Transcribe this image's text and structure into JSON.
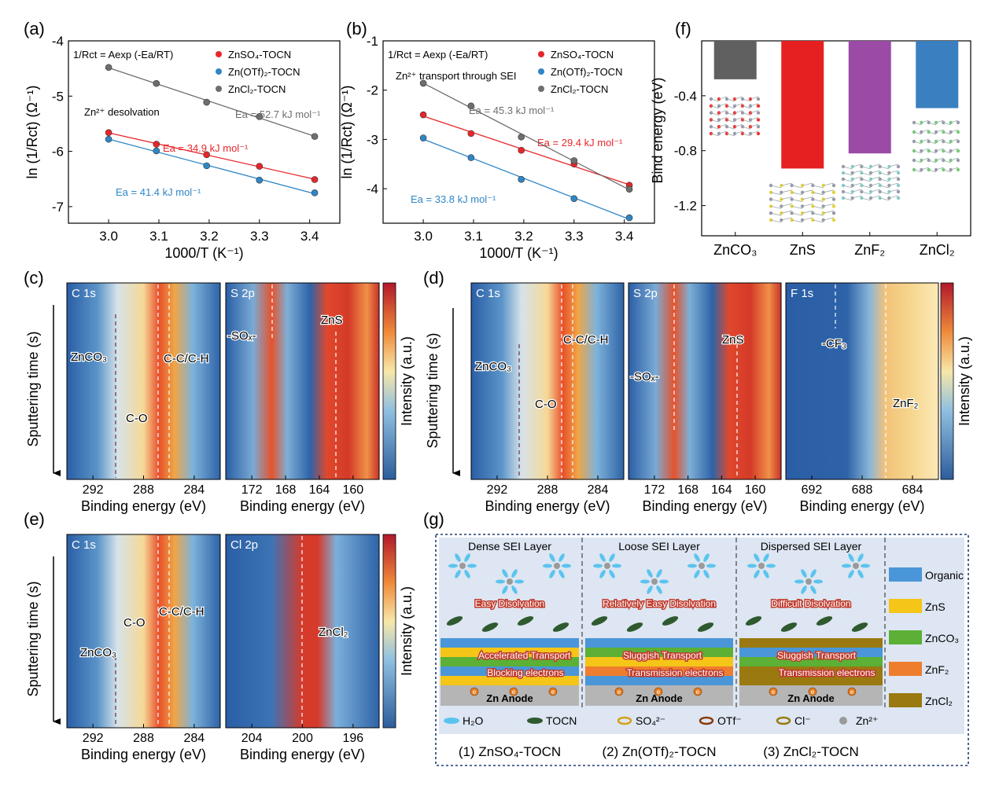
{
  "panels": {
    "a": {
      "letter": "(a)"
    },
    "b": {
      "letter": "(b)"
    },
    "c": {
      "letter": "(c)"
    },
    "d": {
      "letter": "(d)"
    },
    "e": {
      "letter": "(e)"
    },
    "f": {
      "letter": "(f)"
    },
    "g": {
      "letter": "(g)"
    }
  },
  "chart_data": [
    {
      "id": "a",
      "type": "line",
      "xlabel": "1000/T (K⁻¹)",
      "ylabel": "ln (1/Rct) (Ω⁻¹)",
      "xlim": [
        2.92,
        3.46
      ],
      "ylim": [
        -7.3,
        -4.0
      ],
      "xticks": [
        "3.0",
        "3.1",
        "3.2",
        "3.3",
        "3.4"
      ],
      "yticks": [
        "-4",
        "-5",
        "-6",
        "-7"
      ],
      "equation": "1/Rct = Aexp (-Ea/RT)",
      "annotation": "Zn²⁺ desolvation",
      "legend_placement": "top-right",
      "series": [
        {
          "name": "ZnSO₄-TOCN",
          "color": "#e8262a",
          "x": [
            3.0,
            3.095,
            3.195,
            3.3,
            3.41
          ],
          "y": [
            -5.66,
            -5.87,
            -6.06,
            -6.27,
            -6.51
          ],
          "ea_label": "Ea = 34.9 kJ mol⁻¹"
        },
        {
          "name": "Zn(OTf)₂-TOCN",
          "color": "#2f86c6",
          "x": [
            3.0,
            3.095,
            3.195,
            3.3,
            3.41
          ],
          "y": [
            -5.78,
            -5.99,
            -6.26,
            -6.52,
            -6.75
          ],
          "ea_label": "Ea = 41.4 kJ mol⁻¹"
        },
        {
          "name": "ZnCl₂-TOCN",
          "color": "#6e6e6e",
          "x": [
            3.0,
            3.095,
            3.195,
            3.3,
            3.41
          ],
          "y": [
            -4.48,
            -4.77,
            -5.11,
            -5.37,
            -5.73
          ],
          "ea_label": "Ea = 52.7 kJ mol⁻¹"
        }
      ]
    },
    {
      "id": "b",
      "type": "line",
      "xlabel": "1000/T (K⁻¹)",
      "ylabel": "ln (1/Rct) (Ω⁻¹)",
      "xlim": [
        2.92,
        3.46
      ],
      "ylim": [
        -4.7,
        -1.0
      ],
      "xticks": [
        "3.0",
        "3.1",
        "3.2",
        "3.3",
        "3.4"
      ],
      "yticks": [
        "-1",
        "-2",
        "-3",
        "-4"
      ],
      "equation": "1/Rct = Aexp (-Ea/RT)",
      "annotation": "Zn²⁺ transport through SEI",
      "legend_placement": "top-right",
      "series": [
        {
          "name": "ZnSO₄-TOCN",
          "color": "#e8262a",
          "x": [
            3.0,
            3.095,
            3.195,
            3.3,
            3.41
          ],
          "y": [
            -2.5,
            -2.88,
            -3.22,
            -3.5,
            -3.93
          ],
          "ea_label": "Ea = 29.4 kJ mol⁻¹"
        },
        {
          "name": "Zn(OTf)₂-TOCN",
          "color": "#2f86c6",
          "x": [
            3.0,
            3.095,
            3.195,
            3.3,
            3.41
          ],
          "y": [
            -2.97,
            -3.37,
            -3.81,
            -4.2,
            -4.59
          ],
          "ea_label": "Ea = 33.8 kJ mol⁻¹"
        },
        {
          "name": "ZnCl₂-TOCN",
          "color": "#6e6e6e",
          "x": [
            3.0,
            3.095,
            3.195,
            3.3,
            3.41
          ],
          "y": [
            -1.86,
            -2.32,
            -2.95,
            -3.43,
            -4.01
          ],
          "ea_label": "Ea = 45.3 kJ mol⁻¹"
        }
      ]
    },
    {
      "id": "f",
      "type": "bar",
      "ylabel": "Bind energy (eV)",
      "ylim": [
        -1.42,
        0.0
      ],
      "yticks": [
        "-0.4",
        "-0.8",
        "-1.2"
      ],
      "categories": [
        "ZnCO₃",
        "ZnS",
        "ZnF₂",
        "ZnCl₂"
      ],
      "values": [
        -0.28,
        -0.93,
        -0.82,
        -0.49
      ],
      "colors": [
        "#606060",
        "#e62020",
        "#9b4aa6",
        "#3a7fbf"
      ]
    },
    {
      "id": "c-e",
      "type": "heatmap",
      "xlabel": "Binding energy (eV)",
      "ylabel": "Sputtering time (s)",
      "colorbar_label": "Intensity (a.u.)",
      "panels": {
        "c": [
          {
            "title": "C 1s",
            "xticks": [
              "292",
              "288",
              "284"
            ],
            "labels": [
              "ZnCO₃",
              "C-O",
              "C-C/C-H"
            ]
          },
          {
            "title": "S 2p",
            "xticks": [
              "172",
              "168",
              "164",
              "160"
            ],
            "labels": [
              "-SOₓ-",
              "ZnS"
            ]
          }
        ],
        "d": [
          {
            "title": "C 1s",
            "xticks": [
              "292",
              "288",
              "284"
            ],
            "labels": [
              "ZnCO₃",
              "C-O",
              "C-C/C-H"
            ]
          },
          {
            "title": "S 2p",
            "xticks": [
              "172",
              "168",
              "164",
              "160"
            ],
            "labels": [
              "-SOₓ-",
              "ZnS"
            ]
          },
          {
            "title": "F 1s",
            "xticks": [
              "692",
              "688",
              "684"
            ],
            "labels": [
              "-CF₃",
              "ZnF₂"
            ]
          }
        ],
        "e": [
          {
            "title": "C 1s",
            "xticks": [
              "292",
              "288",
              "284"
            ],
            "labels": [
              "ZnCO₃",
              "C-O",
              "C-C/C-H"
            ]
          },
          {
            "title": "Cl 2p",
            "xticks": [
              "204",
              "200",
              "196"
            ],
            "labels": [
              "ZnCl₂"
            ]
          }
        ]
      }
    }
  ],
  "schematic": {
    "headers": [
      "Dense SEI Layer",
      "Loose SEI Layer",
      "Dispersed SEI Layer"
    ],
    "desolvation": [
      "Easy Disolvation",
      "Relatively Easy Disolvation",
      "Difficult Disolvation"
    ],
    "transport": [
      "Accelerated Transport",
      "Sluggish Transport",
      "Sluggish Transport"
    ],
    "electrons": [
      "Blocking electrons",
      "Transmission electrons",
      "Transmission electrons"
    ],
    "anode": "Zn Anode",
    "captions": [
      "(1) ZnSO₄-TOCN",
      "(2) Zn(OTf)₂-TOCN",
      "(3) ZnCl₂-TOCN"
    ],
    "legend_right": [
      {
        "label": "Organic",
        "color": "#4a96d8"
      },
      {
        "label": "ZnS",
        "color": "#f5c518"
      },
      {
        "label": "ZnCO₃",
        "color": "#5bb035"
      },
      {
        "label": "ZnF₂",
        "color": "#ef7d2e"
      },
      {
        "label": "ZnCl₂",
        "color": "#9a7a10"
      }
    ],
    "legend_bottom": [
      "H₂O",
      "TOCN",
      "SO₄²⁻",
      "OTf⁻",
      "Cl⁻",
      "Zn²⁺"
    ],
    "electron_symbol": "e"
  }
}
